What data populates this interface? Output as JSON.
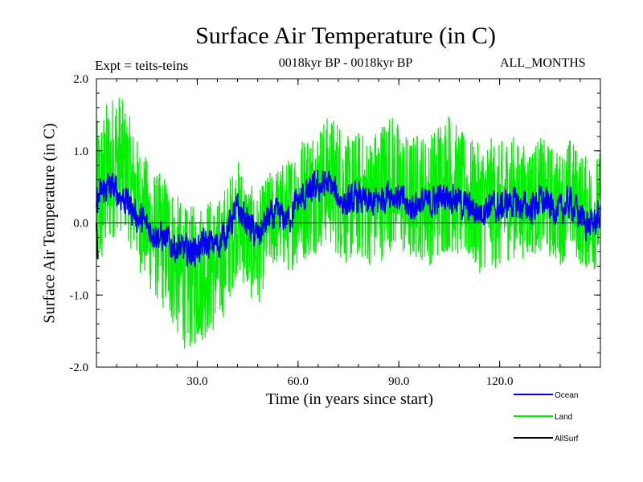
{
  "chart_data": {
    "type": "line",
    "title": "Surface Air Temperature (in C)",
    "subtitle_left": "Expt = teits-teins",
    "subtitle_center": "0018kyr BP - 0018kyr BP",
    "subtitle_right": "ALL_MONTHS",
    "xlabel": "Time (in years since start)",
    "ylabel": "Surface Air Temperature (in C)",
    "xlim": [
      0,
      150
    ],
    "ylim": [
      -2.0,
      2.0
    ],
    "xticks": [
      30,
      60,
      90,
      120
    ],
    "xtick_labels": [
      "30.0",
      "60.0",
      "90.0",
      "120.0"
    ],
    "yticks": [
      -2.0,
      -1.0,
      0.0,
      1.0,
      2.0
    ],
    "ytick_labels": [
      "-2.0",
      "-1.0",
      "0.0",
      "1.0",
      "2.0"
    ],
    "zero_line": true,
    "legend_position": "bottom-right",
    "series": [
      {
        "name": "Land",
        "color": "#00ee00",
        "x": [
          0,
          3,
          6,
          9,
          12,
          15,
          18,
          21,
          24,
          27,
          30,
          33,
          36,
          39,
          42,
          45,
          48,
          51,
          54,
          57,
          60,
          63,
          66,
          69,
          72,
          75,
          78,
          81,
          84,
          87,
          90,
          93,
          96,
          99,
          102,
          105,
          108,
          111,
          114,
          117,
          120,
          123,
          126,
          129,
          132,
          135,
          138,
          141,
          144,
          147,
          150
        ],
        "values": [
          0.2,
          0.6,
          0.9,
          0.7,
          0.3,
          0.0,
          -0.2,
          -0.3,
          -0.6,
          -0.8,
          -0.7,
          -0.6,
          -0.6,
          -0.3,
          0.1,
          -0.2,
          -0.4,
          0.0,
          0.1,
          0.1,
          0.3,
          0.4,
          0.5,
          0.6,
          0.5,
          0.3,
          0.4,
          0.3,
          0.4,
          0.6,
          0.5,
          0.3,
          0.4,
          0.3,
          0.5,
          0.6,
          0.4,
          0.3,
          0.2,
          0.3,
          0.2,
          0.4,
          0.3,
          0.3,
          0.4,
          0.3,
          0.2,
          0.4,
          0.2,
          0.1,
          0.2
        ],
        "amplitude": [
          1.2,
          1.1,
          1.0,
          0.9,
          0.9,
          0.9,
          0.9,
          1.0,
          1.0,
          1.0,
          1.0,
          1.0,
          0.9,
          0.9,
          0.8,
          0.8,
          0.8,
          0.7,
          0.7,
          0.8,
          0.9,
          0.9,
          0.9,
          0.9,
          1.0,
          0.9,
          0.9,
          0.9,
          1.0,
          1.0,
          0.9,
          0.9,
          0.9,
          0.9,
          1.0,
          1.0,
          0.9,
          0.9,
          0.9,
          0.9,
          0.9,
          0.9,
          0.8,
          0.8,
          0.8,
          0.8,
          0.8,
          0.8,
          0.8,
          0.8,
          0.8
        ],
        "max": 1.75,
        "min": -1.85
      },
      {
        "name": "Ocean",
        "color": "#0000ee",
        "x": [
          0,
          3,
          6,
          9,
          12,
          15,
          18,
          21,
          24,
          27,
          30,
          33,
          36,
          39,
          42,
          45,
          48,
          51,
          54,
          57,
          60,
          63,
          66,
          69,
          72,
          75,
          78,
          81,
          84,
          87,
          90,
          93,
          96,
          99,
          102,
          105,
          108,
          111,
          114,
          117,
          120,
          123,
          126,
          129,
          132,
          135,
          138,
          141,
          144,
          147,
          150
        ],
        "values": [
          0.3,
          0.5,
          0.45,
          0.3,
          0.1,
          -0.05,
          -0.15,
          -0.25,
          -0.35,
          -0.4,
          -0.35,
          -0.3,
          -0.3,
          -0.1,
          0.2,
          0.0,
          -0.2,
          0.05,
          0.1,
          0.05,
          0.3,
          0.4,
          0.5,
          0.55,
          0.35,
          0.25,
          0.35,
          0.25,
          0.3,
          0.45,
          0.35,
          0.2,
          0.3,
          0.25,
          0.35,
          0.4,
          0.3,
          0.2,
          0.15,
          0.25,
          0.2,
          0.3,
          0.25,
          0.2,
          0.3,
          0.25,
          0.15,
          0.3,
          0.1,
          -0.05,
          0.1
        ],
        "amplitude": [
          0.2,
          0.2,
          0.2,
          0.2,
          0.2,
          0.2,
          0.2,
          0.2,
          0.2,
          0.2,
          0.2,
          0.2,
          0.2,
          0.2,
          0.2,
          0.2,
          0.2,
          0.2,
          0.2,
          0.2,
          0.2,
          0.2,
          0.2,
          0.2,
          0.2,
          0.2,
          0.2,
          0.2,
          0.2,
          0.2,
          0.2,
          0.2,
          0.2,
          0.2,
          0.2,
          0.2,
          0.2,
          0.2,
          0.2,
          0.2,
          0.2,
          0.2,
          0.2,
          0.2,
          0.2,
          0.2,
          0.2,
          0.2,
          0.2,
          0.2,
          0.2
        ]
      },
      {
        "name": "AllSurf",
        "color": "#000000",
        "x": [
          0,
          0.2,
          0.4
        ],
        "values": [
          0.0,
          -0.3,
          -0.5
        ]
      }
    ]
  }
}
